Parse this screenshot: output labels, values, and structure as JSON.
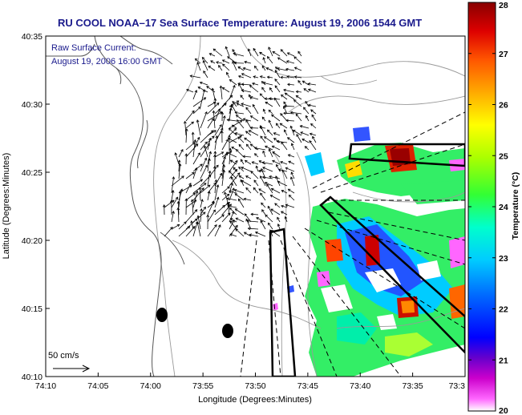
{
  "title": "RU COOL  NOAA–17  Sea Surface Temperature:  August 19, 2006 1544 GMT",
  "annotation": {
    "line1": "Raw Surface Current:",
    "line2": "August 19, 2006 16:00 GMT"
  },
  "scale_label": "50 cm/s",
  "axes": {
    "xlabel": "Longitude (Degrees:Minutes)",
    "ylabel": "Latitude (Degrees:Minutes)",
    "x_ticks": [
      "74:10",
      "74:05",
      "74:00",
      "73:55",
      "73:50",
      "73:45",
      "73:40",
      "73:35",
      "73:3"
    ],
    "y_ticks": [
      "40:35",
      "40:30",
      "40:25",
      "40:20",
      "40:15",
      "40:10"
    ]
  },
  "colorbar": {
    "label": "Temperature (°C)",
    "min": 20,
    "max": 28,
    "ticks": [
      "28",
      "27",
      "26",
      "25",
      "24",
      "23",
      "22",
      "21",
      "20"
    ]
  },
  "colors": {
    "title_blue": "#1a1a8c",
    "coast": "#555555",
    "bathy": "#999999"
  }
}
